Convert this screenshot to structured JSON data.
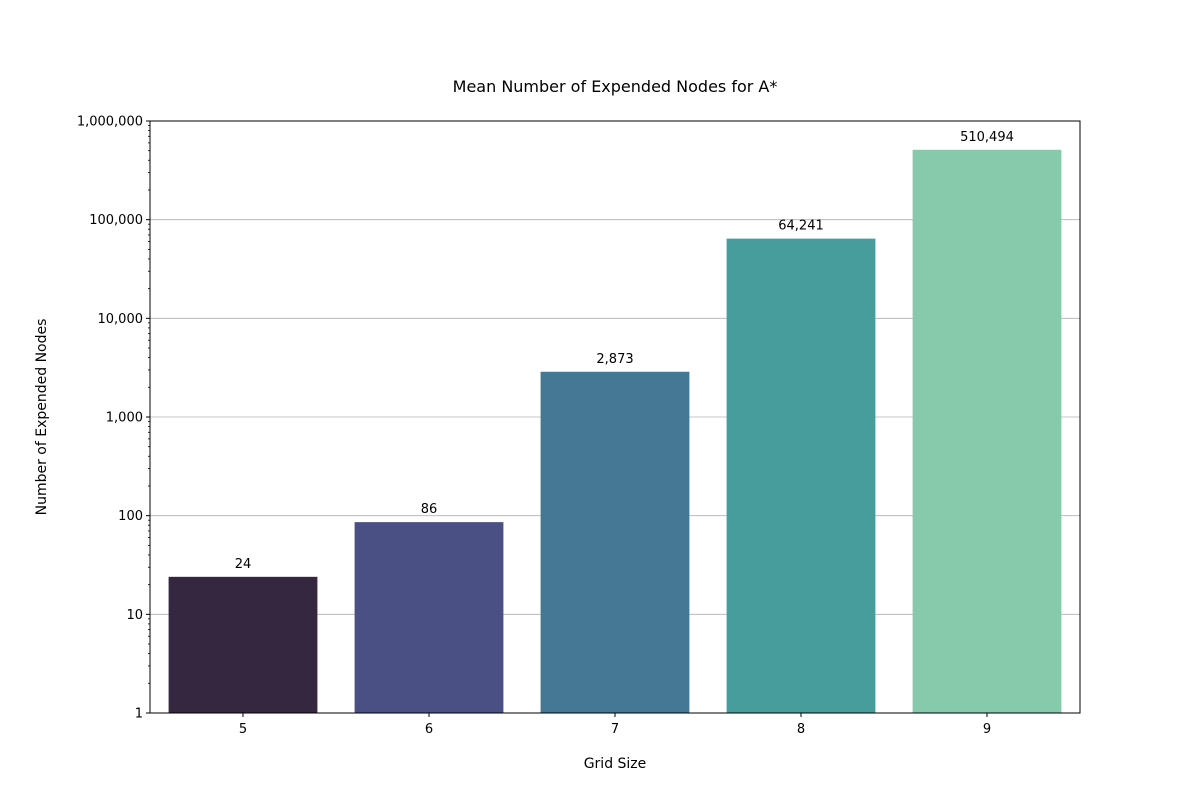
{
  "chart_data": {
    "type": "bar",
    "title": "Mean Number of Expended Nodes for A*",
    "xlabel": "Grid Size",
    "ylabel": "Number of Expended Nodes",
    "categories": [
      "5",
      "6",
      "7",
      "8",
      "9"
    ],
    "values": [
      24,
      86,
      2873,
      64241,
      510494
    ],
    "value_labels": [
      "24",
      "86",
      "2,873",
      "64,241",
      "510,494"
    ],
    "yscale": "log",
    "ylim": [
      1,
      1000000
    ],
    "yticks": [
      1,
      10,
      100,
      1000,
      10000,
      100000,
      1000000
    ],
    "ytick_labels": [
      "1",
      "10",
      "100",
      "1,000",
      "10,000",
      "100,000",
      "1,000,000"
    ],
    "grid": "y-major",
    "legend": "none",
    "colors": [
      "#35273f",
      "#4a5084",
      "#447895",
      "#479c9c",
      "#87c9ab"
    ]
  }
}
